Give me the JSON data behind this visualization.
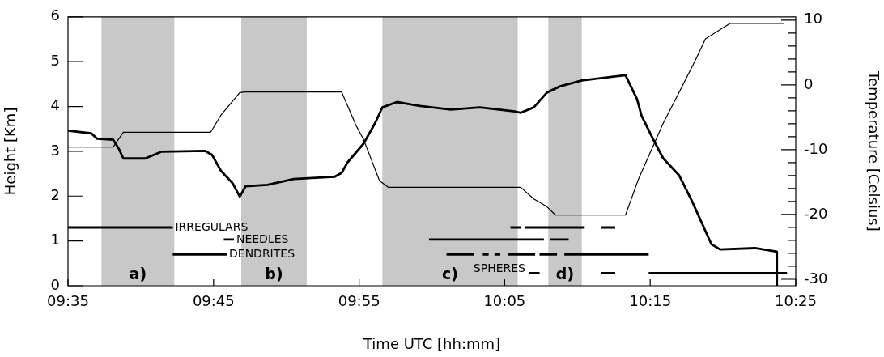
{
  "chart_data": {
    "type": "line",
    "xlabel": "Time UTC [hh:mm]",
    "ylabel": "Height [Km]",
    "y2label": "Temperature [Celsius]",
    "xlim": [
      9.5833,
      10.4167
    ],
    "xticks": [
      {
        "value": 9.5833,
        "label": "09:35"
      },
      {
        "value": 9.75,
        "label": "09:45"
      },
      {
        "value": 9.9167,
        "label": "09:55"
      },
      {
        "value": 10.0833,
        "label": "10:05"
      },
      {
        "value": 10.25,
        "label": "10:15"
      },
      {
        "value": 10.4167,
        "label": "10:25"
      }
    ],
    "ylim": [
      0,
      6
    ],
    "yticks": [
      0,
      1,
      2,
      3,
      4,
      5,
      6
    ],
    "y2lim": [
      -31,
      10.5
    ],
    "y2ticks": [
      -30,
      {
        "value": -28,
        "label": null
      },
      {
        "value": -26,
        "label": null
      },
      {
        "value": -24,
        "label": null
      },
      {
        "value": -22,
        "label": null
      },
      -20,
      {
        "value": -18,
        "label": null
      },
      {
        "value": -16,
        "label": null
      },
      {
        "value": -14,
        "label": null
      },
      {
        "value": -12,
        "label": null
      },
      -10,
      {
        "value": -8,
        "label": null
      },
      {
        "value": -6,
        "label": null
      },
      {
        "value": -4,
        "label": null
      },
      {
        "value": -2,
        "label": null
      },
      0,
      {
        "value": 2,
        "label": null
      },
      {
        "value": 4,
        "label": null
      },
      {
        "value": 6,
        "label": null
      },
      {
        "value": 8,
        "label": null
      },
      10
    ],
    "grid": false,
    "legend": false,
    "marker": "none",
    "line_style": "solid",
    "bands": [
      {
        "axis": "x",
        "from": 9.6217,
        "to": 9.705,
        "label": "a)",
        "color": "#c8c8c8"
      },
      {
        "axis": "x",
        "from": 9.7817,
        "to": 9.8567,
        "label": "b)",
        "color": "#c8c8c8"
      },
      {
        "axis": "x",
        "from": 9.9433,
        "to": 10.0983,
        "label": "c)",
        "color": "#c8c8c8"
      },
      {
        "axis": "x",
        "from": 10.1333,
        "to": 10.1717,
        "label": "d)",
        "color": "#c8c8c8"
      }
    ],
    "series": [
      {
        "color": "#000000",
        "x": [
          9.5833,
          9.61,
          9.6167,
          9.635,
          9.6417,
          9.6467,
          9.6717,
          9.69,
          9.74,
          9.7483,
          9.7583,
          9.7717,
          9.78,
          9.7867,
          9.8117,
          9.8417,
          9.8883,
          9.8967,
          9.9033,
          9.9217,
          9.935,
          9.9433,
          9.96,
          9.9867,
          10.0217,
          10.055,
          10.095,
          10.1017,
          10.1167,
          10.1317,
          10.1467,
          10.1717,
          10.2217,
          10.235,
          10.24,
          10.2533,
          10.265,
          10.2833,
          10.2983,
          10.32,
          10.33,
          10.37,
          10.395,
          10.3951
        ],
        "values": [
          3.46,
          3.4,
          3.28,
          3.26,
          3.05,
          2.84,
          2.84,
          2.99,
          3.01,
          2.92,
          2.57,
          2.29,
          1.99,
          2.22,
          2.25,
          2.38,
          2.43,
          2.52,
          2.75,
          3.17,
          3.63,
          3.98,
          4.1,
          4.01,
          3.93,
          3.98,
          3.89,
          3.86,
          3.98,
          4.31,
          4.45,
          4.58,
          4.7,
          4.16,
          3.8,
          3.27,
          2.84,
          2.46,
          1.87,
          0.93,
          0.81,
          0.84,
          0.76,
          0
        ]
      },
      {
        "color": "#000000",
        "axis": "y2",
        "x": [
          9.5833,
          9.635,
          9.6467,
          9.7467,
          9.7583,
          9.78,
          9.7867,
          9.8967,
          9.9133,
          9.9217,
          9.94,
          9.95,
          10.1017,
          10.1167,
          10.1317,
          10.1417,
          10.2217,
          10.2367,
          10.265,
          10.2833,
          10.3017,
          10.3133,
          10.3417,
          10.4033
        ],
        "values": [
          -9.6,
          -9.6,
          -7.3,
          -7.3,
          -4.7,
          -1.2,
          -1.1,
          -1.1,
          -6.3,
          -8.4,
          -14.8,
          -15.8,
          -15.8,
          -17.6,
          -18.8,
          -20.1,
          -20.1,
          -14.5,
          -5.9,
          -1.1,
          3.8,
          7.1,
          9.5,
          9.5
        ]
      },
      {
        "name": "IRREGULARS",
        "color": "#000000",
        "x": [
          9.5833,
          9.7033,
          null,
          10.09,
          10.1017,
          null,
          10.1067,
          10.175,
          null,
          10.1933,
          10.21
        ],
        "values": [
          1.3,
          1.3,
          null,
          1.3,
          1.3,
          null,
          1.3,
          1.3,
          null,
          1.3,
          1.3
        ]
      },
      {
        "name": "NEEDLES",
        "color": "#000000",
        "x": [
          9.7617,
          9.7733,
          null,
          9.9967,
          10.1283,
          null,
          10.135,
          10.1567
        ],
        "values": [
          1.03,
          1.03,
          null,
          1.03,
          1.03,
          null,
          1.03,
          1.03
        ]
      },
      {
        "name": "DENDRITES",
        "color": "#000000",
        "x": [
          9.7033,
          9.765,
          null,
          10.0167,
          10.0483,
          null,
          10.0583,
          10.065,
          null,
          10.0717,
          10.0783,
          null,
          10.0867,
          10.1183,
          null,
          10.1233,
          10.1433,
          null,
          10.1517,
          10.2483
        ],
        "values": [
          0.7,
          0.7,
          null,
          0.7,
          0.7,
          null,
          0.7,
          0.7,
          null,
          0.7,
          0.7,
          null,
          0.7,
          0.7,
          null,
          0.7,
          0.7,
          null,
          0.7,
          0.7
        ]
      },
      {
        "name": "SPHERES",
        "color": "#000000",
        "x": [
          10.1117,
          10.1233,
          null,
          10.1933,
          10.21,
          null,
          10.2483,
          10.4067
        ],
        "values": [
          0.28,
          0.28,
          null,
          0.28,
          0.28,
          null,
          0.28,
          0.28
        ]
      }
    ]
  }
}
